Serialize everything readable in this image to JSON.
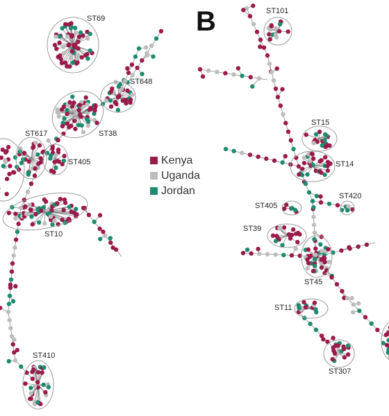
{
  "panel_label": "B",
  "legend": [
    {
      "label": "Kenya",
      "color": "#9a1b4b"
    },
    {
      "label": "Uganda",
      "color": "#bdbdbd"
    },
    {
      "label": "Jordan",
      "color": "#1e8a70"
    }
  ],
  "clusters": [
    {
      "label": "ST69"
    },
    {
      "label": "ST648"
    },
    {
      "label": "ST38"
    },
    {
      "label": "ST617"
    },
    {
      "label": "ST405"
    },
    {
      "label": "ST10"
    },
    {
      "label": "ST410"
    },
    {
      "label": "ST101"
    },
    {
      "label": "ST15"
    },
    {
      "label": "ST14"
    },
    {
      "label": "ST420"
    },
    {
      "label": "ST405"
    },
    {
      "label": "ST39"
    },
    {
      "label": "ST45"
    },
    {
      "label": "ST11"
    },
    {
      "label": "ST307"
    }
  ]
}
